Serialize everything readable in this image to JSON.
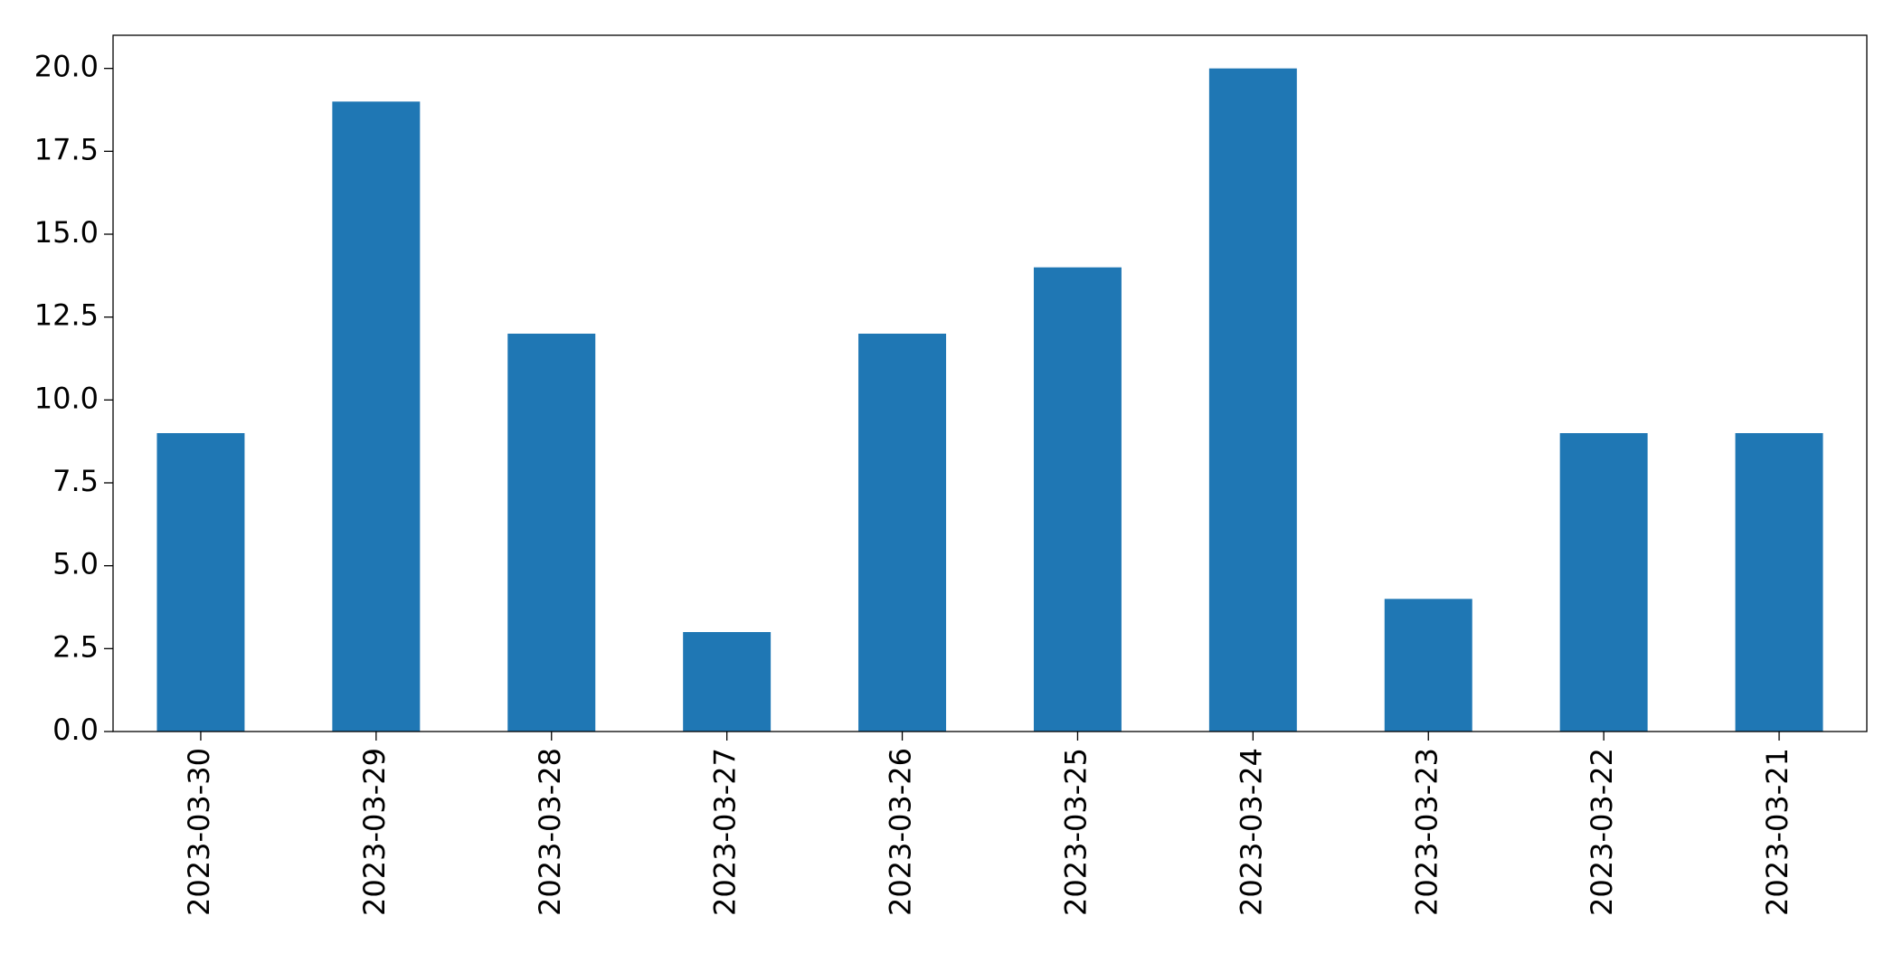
{
  "chart_data": {
    "type": "bar",
    "categories": [
      "2023-03-30",
      "2023-03-29",
      "2023-03-28",
      "2023-03-27",
      "2023-03-26",
      "2023-03-25",
      "2023-03-24",
      "2023-03-23",
      "2023-03-22",
      "2023-03-21"
    ],
    "values": [
      9,
      19,
      12,
      3,
      12,
      14,
      20,
      4,
      9,
      9
    ],
    "color": "#1f77b4",
    "ylim": [
      0,
      21
    ],
    "yticks": [
      {
        "value": 0,
        "label": "0.0"
      },
      {
        "value": 2.5,
        "label": "2.5"
      },
      {
        "value": 5,
        "label": "5.0"
      },
      {
        "value": 7.5,
        "label": "7.5"
      },
      {
        "value": 10,
        "label": "10.0"
      },
      {
        "value": 12.5,
        "label": "12.5"
      },
      {
        "value": 15,
        "label": "15.0"
      },
      {
        "value": 17.5,
        "label": "17.5"
      },
      {
        "value": 20,
        "label": "20.0"
      }
    ],
    "grid": false
  }
}
